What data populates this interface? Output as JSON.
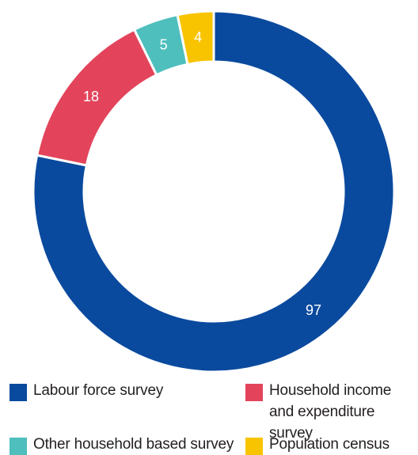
{
  "chart_data": {
    "type": "pie",
    "variant": "donut",
    "start_angle_deg": 0,
    "direction": "clockwise",
    "categories": [
      "Labour force survey",
      "Household income and expenditure survey",
      "Other household based survey",
      "Population census"
    ],
    "values": [
      97,
      18,
      5,
      4
    ],
    "data_labels": [
      "97",
      "18",
      "5",
      "4"
    ],
    "colors": [
      "#0a4a9e",
      "#e3445b",
      "#4fbfbd",
      "#f8c400"
    ],
    "title": "",
    "legend_position": "bottom"
  },
  "legend": [
    {
      "label": "Labour force survey",
      "color": "#0a4a9e"
    },
    {
      "label": "Household income and expenditure survey",
      "color": "#e3445b"
    },
    {
      "label": "Other household based survey",
      "color": "#4fbfbd"
    },
    {
      "label": "Population census",
      "color": "#f8c400"
    }
  ]
}
